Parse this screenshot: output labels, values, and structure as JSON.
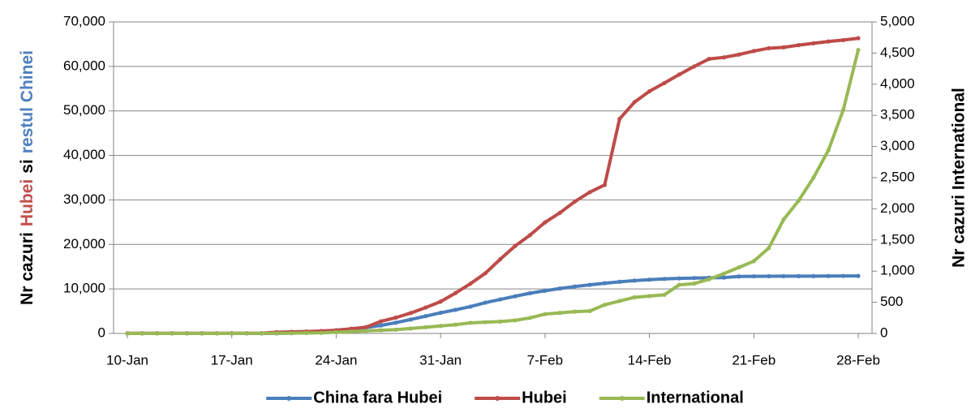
{
  "chart_data": {
    "type": "line",
    "y_label": [
      "Nr cazuri",
      "Hubei",
      "si",
      "restul Chinei"
    ],
    "y_label_colors": [
      "#000000",
      "#c0504d",
      "#000000",
      "#4f81bd"
    ],
    "y2_label": "Nr cazuri International",
    "y2_label_color": "#9bbb59",
    "categories": [
      "10-Jan",
      null,
      null,
      null,
      null,
      null,
      null,
      "17-Jan",
      null,
      null,
      null,
      null,
      null,
      null,
      "24-Jan",
      null,
      null,
      null,
      null,
      null,
      null,
      "31-Jan",
      null,
      null,
      null,
      null,
      null,
      null,
      "7-Feb",
      null,
      null,
      null,
      null,
      null,
      null,
      "14-Feb",
      null,
      null,
      null,
      null,
      null,
      null,
      "21-Feb",
      null,
      null,
      null,
      null,
      null,
      null,
      "28-Feb"
    ],
    "series": [
      {
        "name": "China fara Hubei",
        "color": "#4a7ebb",
        "values": [
          0,
          0,
          0,
          0,
          0,
          0,
          0,
          0,
          0,
          0,
          21,
          65,
          127,
          281,
          558,
          923,
          1321,
          1801,
          2420,
          3125,
          3886,
          4638,
          5306,
          6028,
          6916,
          7646,
          8353,
          9049,
          9593,
          10098,
          10540,
          10910,
          11287,
          11598,
          11865,
          12086,
          12251,
          12366,
          12447,
          12503,
          12545,
          12803,
          12834,
          12852,
          12863,
          12872,
          12877,
          12901,
          12910,
          12914
        ]
      },
      {
        "name": "Hubei",
        "color": "#be4b48",
        "values": [
          41,
          41,
          41,
          41,
          41,
          41,
          41,
          41,
          45,
          62,
          270,
          375,
          444,
          549,
          729,
          1052,
          1423,
          2714,
          3554,
          4586,
          5806,
          7153,
          9074,
          11177,
          13522,
          16678,
          19665,
          22112,
          24953,
          27100,
          29631,
          31728,
          33366,
          48206,
          51986,
          54406,
          56249,
          58182,
          59989,
          61682,
          62031,
          62662,
          63454,
          64084,
          64287,
          64786,
          65187,
          65596,
          65914,
          66337
        ]
      },
      {
        "name": "International",
        "color": "#98b954",
        "axis": "y2",
        "values": [
          0,
          0,
          0,
          0,
          0,
          0,
          0,
          0,
          1,
          2,
          3,
          5,
          8,
          10,
          20,
          30,
          40,
          50,
          60,
          80,
          100,
          120,
          140,
          170,
          180,
          190,
          210,
          250,
          310,
          330,
          350,
          360,
          460,
          520,
          580,
          600,
          620,
          780,
          800,
          870,
          960,
          1060,
          1160,
          1370,
          1830,
          2130,
          2500,
          2940,
          3590,
          4550
        ]
      }
    ],
    "ylim": [
      0,
      70000
    ],
    "yticks": [
      0,
      {
        "value": 10000,
        "label": "10,000"
      },
      {
        "value": 20000,
        "label": "20,000"
      },
      {
        "value": 30000,
        "label": "30,000"
      },
      {
        "value": 40000,
        "label": "40,000"
      },
      {
        "value": 50000,
        "label": "50,000"
      },
      {
        "value": 60000,
        "label": "60,000"
      },
      {
        "value": 70000,
        "label": "70,000"
      }
    ],
    "y2lim": [
      0,
      5000
    ],
    "y2ticks": [
      0,
      500,
      {
        "value": 1000,
        "label": "1,000"
      },
      {
        "value": 1500,
        "label": "1,500"
      },
      {
        "value": 2000,
        "label": "2,000"
      },
      {
        "value": 2500,
        "label": "2,500"
      },
      {
        "value": 3000,
        "label": "3,000"
      },
      {
        "value": 3500,
        "label": "3,500"
      },
      {
        "value": 4000,
        "label": "4,000"
      },
      {
        "value": 4500,
        "label": "4,500"
      },
      {
        "value": 5000,
        "label": "5,000"
      }
    ],
    "grid": true,
    "legend": "bottom"
  }
}
